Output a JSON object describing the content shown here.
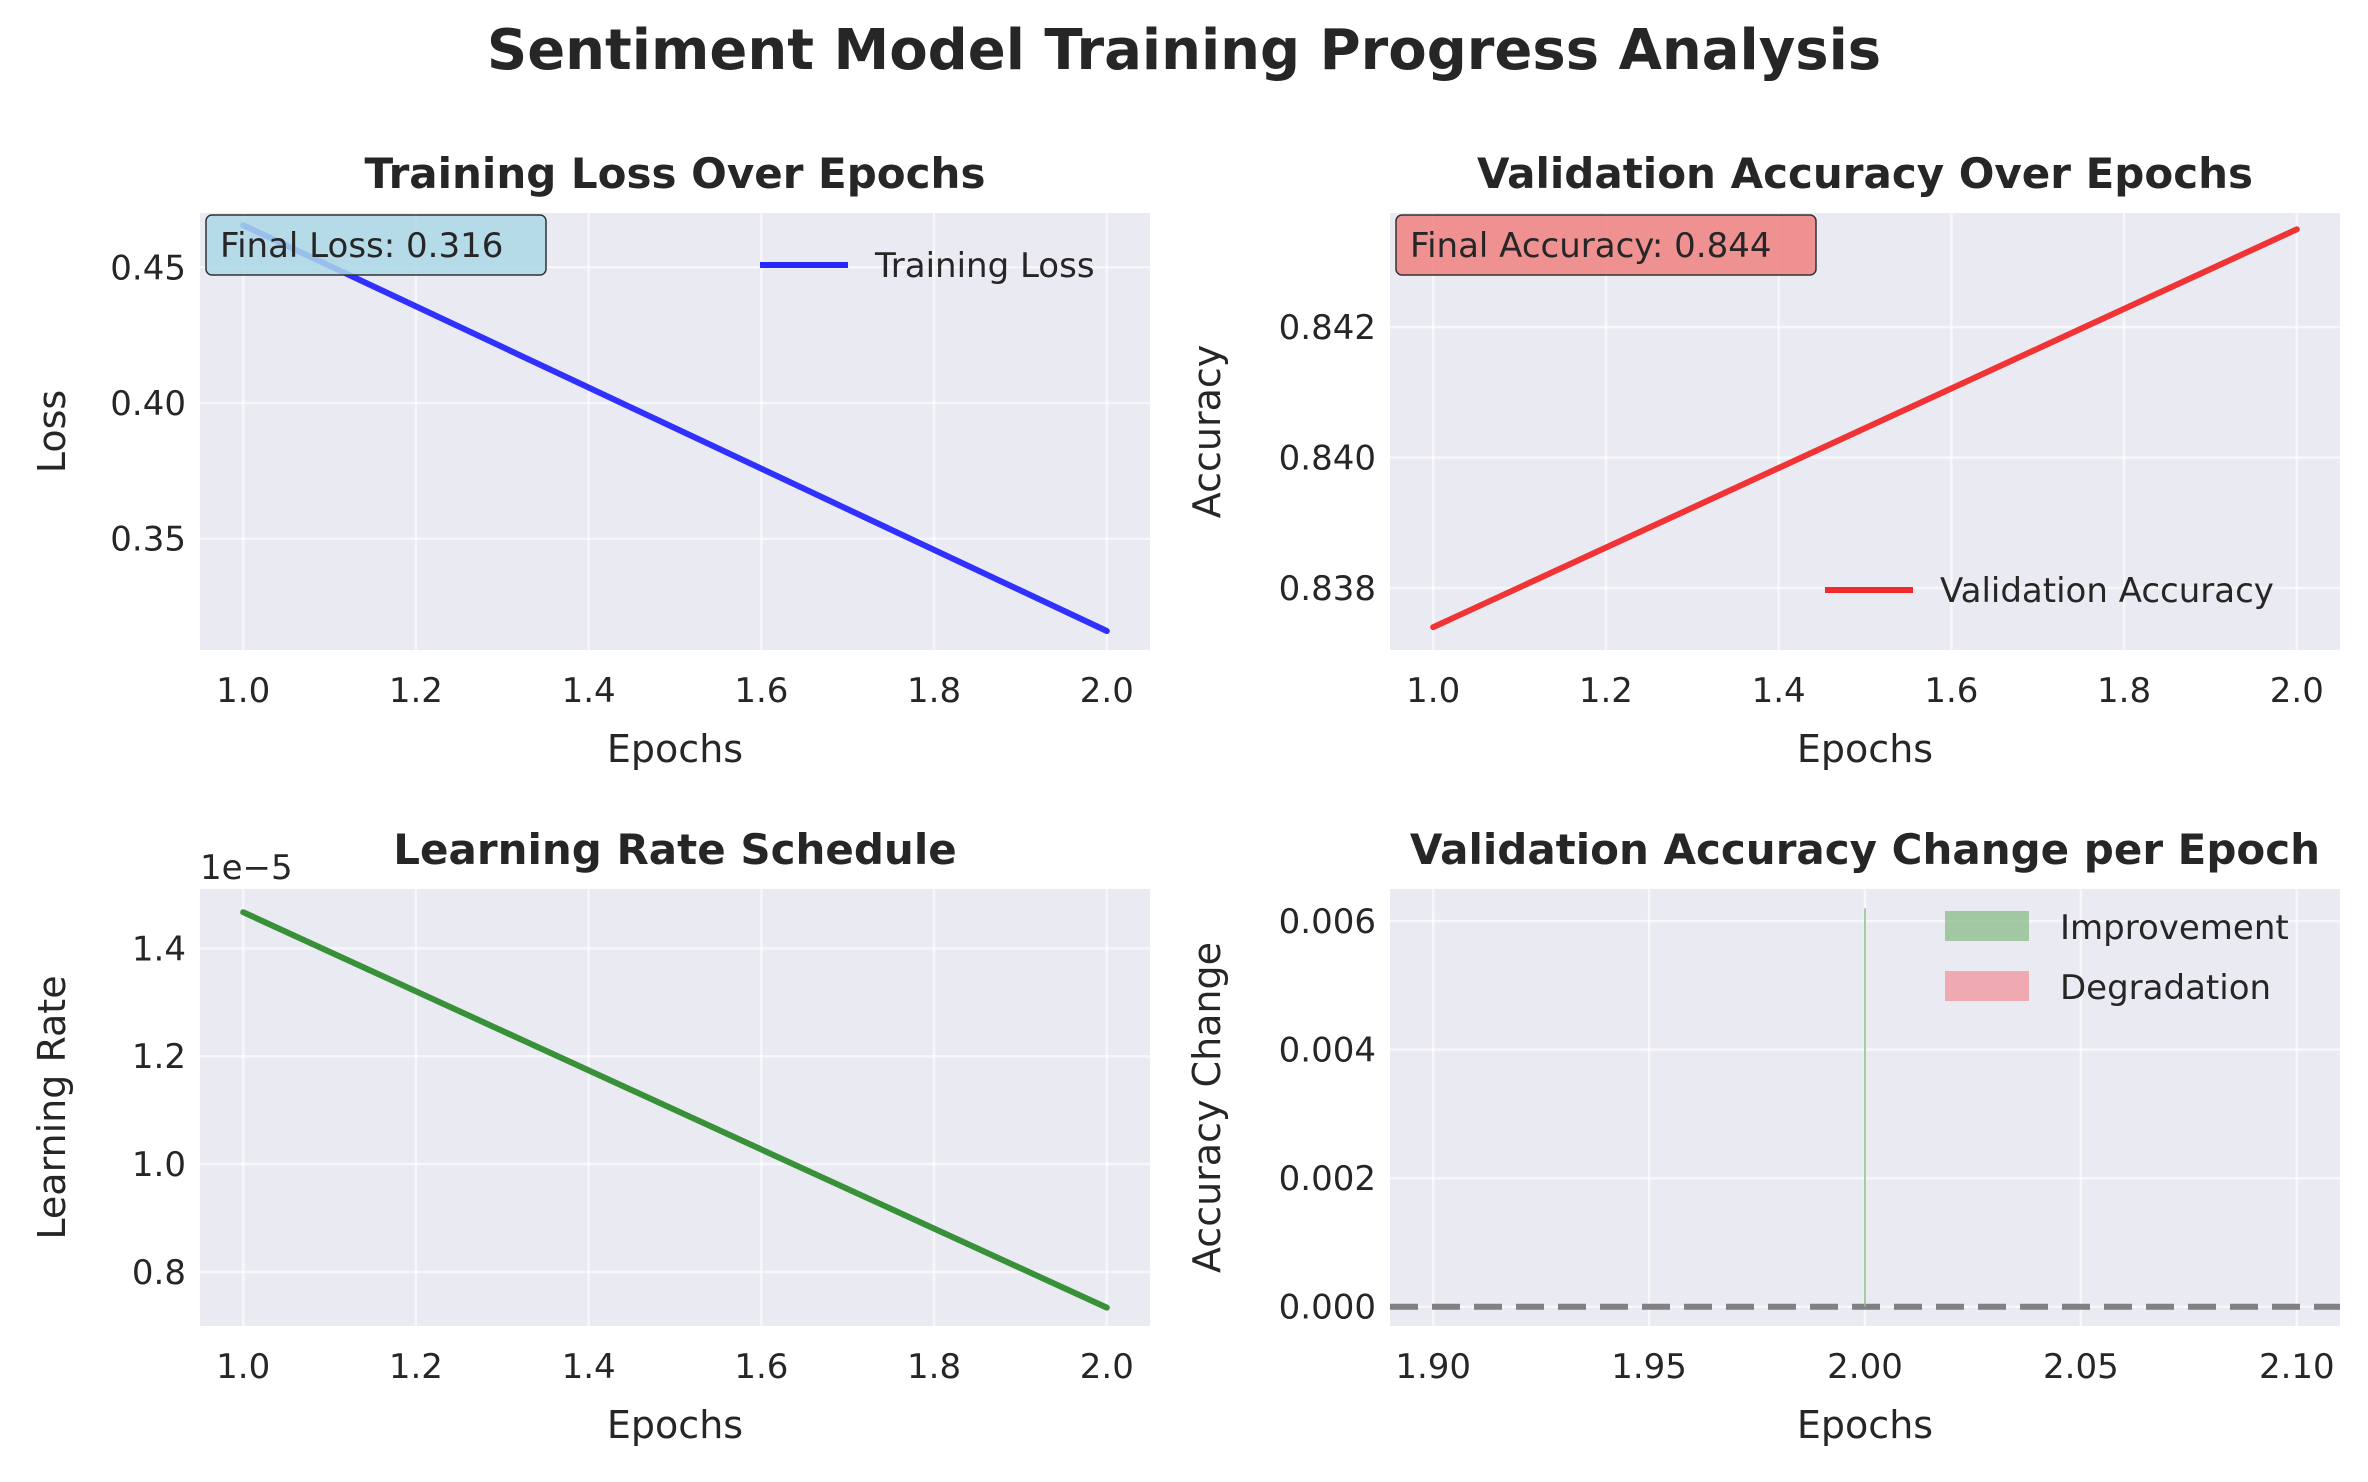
{
  "suptitle": "Sentiment Model Training Progress Analysis",
  "colors": {
    "axes_bg": "#eaeaf2",
    "grid": "#ffffff",
    "loss": "#2626ff",
    "accuracy": "#f02a2a",
    "lr": "#2e8b2e",
    "improvement": "#8fbf8f",
    "degradation": "#f0989f",
    "zero_line": "#808080",
    "loss_box": "#add8e6",
    "acc_box": "#f08080"
  },
  "chart_data": [
    {
      "id": "loss",
      "type": "line",
      "title": "Training Loss Over Epochs",
      "xlabel": "Epochs",
      "ylabel": "Loss",
      "xlim": [
        0.95,
        2.05
      ],
      "ylim": [
        0.309,
        0.47
      ],
      "xticks": [
        1.0,
        1.2,
        1.4,
        1.6,
        1.8,
        2.0
      ],
      "xtick_labels": [
        "1.0",
        "1.2",
        "1.4",
        "1.6",
        "1.8",
        "2.0"
      ],
      "yticks": [
        0.35,
        0.4,
        0.45
      ],
      "ytick_labels": [
        "0.35",
        "0.40",
        "0.45"
      ],
      "grid": true,
      "legend_position": "upper right",
      "series": [
        {
          "name": "Training Loss",
          "x": [
            1,
            2
          ],
          "y": [
            0.4655,
            0.316
          ],
          "color": "#2626ff"
        }
      ],
      "annotation": "Final Loss: 0.316"
    },
    {
      "id": "accuracy",
      "type": "line",
      "title": "Validation Accuracy Over Epochs",
      "xlabel": "Epochs",
      "ylabel": "Accuracy",
      "xlim": [
        0.95,
        2.05
      ],
      "ylim": [
        0.83705,
        0.84375
      ],
      "xticks": [
        1.0,
        1.2,
        1.4,
        1.6,
        1.8,
        2.0
      ],
      "xtick_labels": [
        "1.0",
        "1.2",
        "1.4",
        "1.6",
        "1.8",
        "2.0"
      ],
      "yticks": [
        0.838,
        0.84,
        0.842
      ],
      "ytick_labels": [
        "0.838",
        "0.840",
        "0.842"
      ],
      "grid": true,
      "legend_position": "lower right",
      "series": [
        {
          "name": "Validation Accuracy",
          "x": [
            1,
            2
          ],
          "y": [
            0.8374,
            0.8435
          ],
          "color": "#f02a2a"
        }
      ],
      "annotation": "Final Accuracy: 0.844"
    },
    {
      "id": "lr",
      "type": "line",
      "title": "Learning Rate Schedule",
      "xlabel": "Epochs",
      "ylabel": "Learning Rate",
      "xlim": [
        0.95,
        2.05
      ],
      "ylim": [
        0.7,
        1.51
      ],
      "scale_label": "1e−5",
      "xticks": [
        1.0,
        1.2,
        1.4,
        1.6,
        1.8,
        2.0
      ],
      "xtick_labels": [
        "1.0",
        "1.2",
        "1.4",
        "1.6",
        "1.8",
        "2.0"
      ],
      "yticks": [
        0.8,
        1.0,
        1.2,
        1.4
      ],
      "ytick_labels": [
        "0.8",
        "1.0",
        "1.2",
        "1.4"
      ],
      "grid": true,
      "series": [
        {
          "x": [
            1,
            2
          ],
          "y": [
            1.467,
            0.734
          ],
          "color": "#2e8b2e"
        }
      ]
    },
    {
      "id": "acc_change",
      "type": "bar",
      "title": "Validation Accuracy Change per Epoch",
      "xlabel": "Epochs",
      "ylabel": "Accuracy Change",
      "xlim": [
        1.89,
        2.11
      ],
      "ylim": [
        -0.0003,
        0.0065
      ],
      "xticks": [
        1.9,
        1.95,
        2.0,
        2.05,
        2.1
      ],
      "xtick_labels": [
        "1.90",
        "1.95",
        "2.00",
        "2.05",
        "2.10"
      ],
      "yticks": [
        0.0,
        0.002,
        0.004,
        0.006
      ],
      "ytick_labels": [
        "0.000",
        "0.002",
        "0.004",
        "0.006"
      ],
      "grid": true,
      "legend_position": "upper right",
      "bars": [
        {
          "x": 2.0,
          "value": 0.0062
        }
      ],
      "zero_line": 0,
      "legend": [
        {
          "name": "Improvement",
          "color": "#8fbf8f"
        },
        {
          "name": "Degradation",
          "color": "#f0989f"
        }
      ]
    }
  ]
}
